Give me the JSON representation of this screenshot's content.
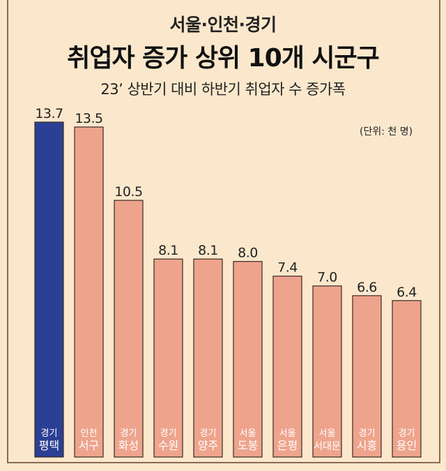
{
  "header": {
    "supertitle": "서울·인천·경기",
    "title": "취업자 증가 상위 10개 시군구",
    "subtitle": "23’ 상반기 대비 하반기 취업자 수 증가폭",
    "unit": "(단위: 천 명)"
  },
  "colors": {
    "background": "#fbe8cc",
    "highlight_bar": "#2b3f94",
    "normal_bar": "#eea48c",
    "bar_stroke": "#3a2a22"
  },
  "chart_data": {
    "type": "bar",
    "title": "취업자 증가 상위 10개 시군구",
    "subtitle": "23’ 상반기 대비 하반기 취업자 수 증가폭",
    "unit": "(단위: 천 명)",
    "categories": [
      {
        "region": "경기",
        "name": "평택"
      },
      {
        "region": "인천",
        "name": "서구"
      },
      {
        "region": "경기",
        "name": "화성"
      },
      {
        "region": "경기",
        "name": "수원"
      },
      {
        "region": "경기",
        "name": "양주"
      },
      {
        "region": "서울",
        "name": "도봉"
      },
      {
        "region": "서울",
        "name": "은평"
      },
      {
        "region": "서울",
        "name": "서대문"
      },
      {
        "region": "경기",
        "name": "시흥"
      },
      {
        "region": "경기",
        "name": "용인"
      }
    ],
    "values": [
      13.7,
      13.5,
      10.5,
      8.1,
      8.1,
      8.0,
      7.4,
      7.0,
      6.6,
      6.4
    ],
    "value_labels": [
      "13.7",
      "13.5",
      "10.5",
      "8.1",
      "8.1",
      "8.0",
      "7.4",
      "7.0",
      "6.6",
      "6.4"
    ],
    "highlight_index": 0,
    "ylim": [
      0,
      13.7
    ],
    "grid": false,
    "legend": "none"
  }
}
